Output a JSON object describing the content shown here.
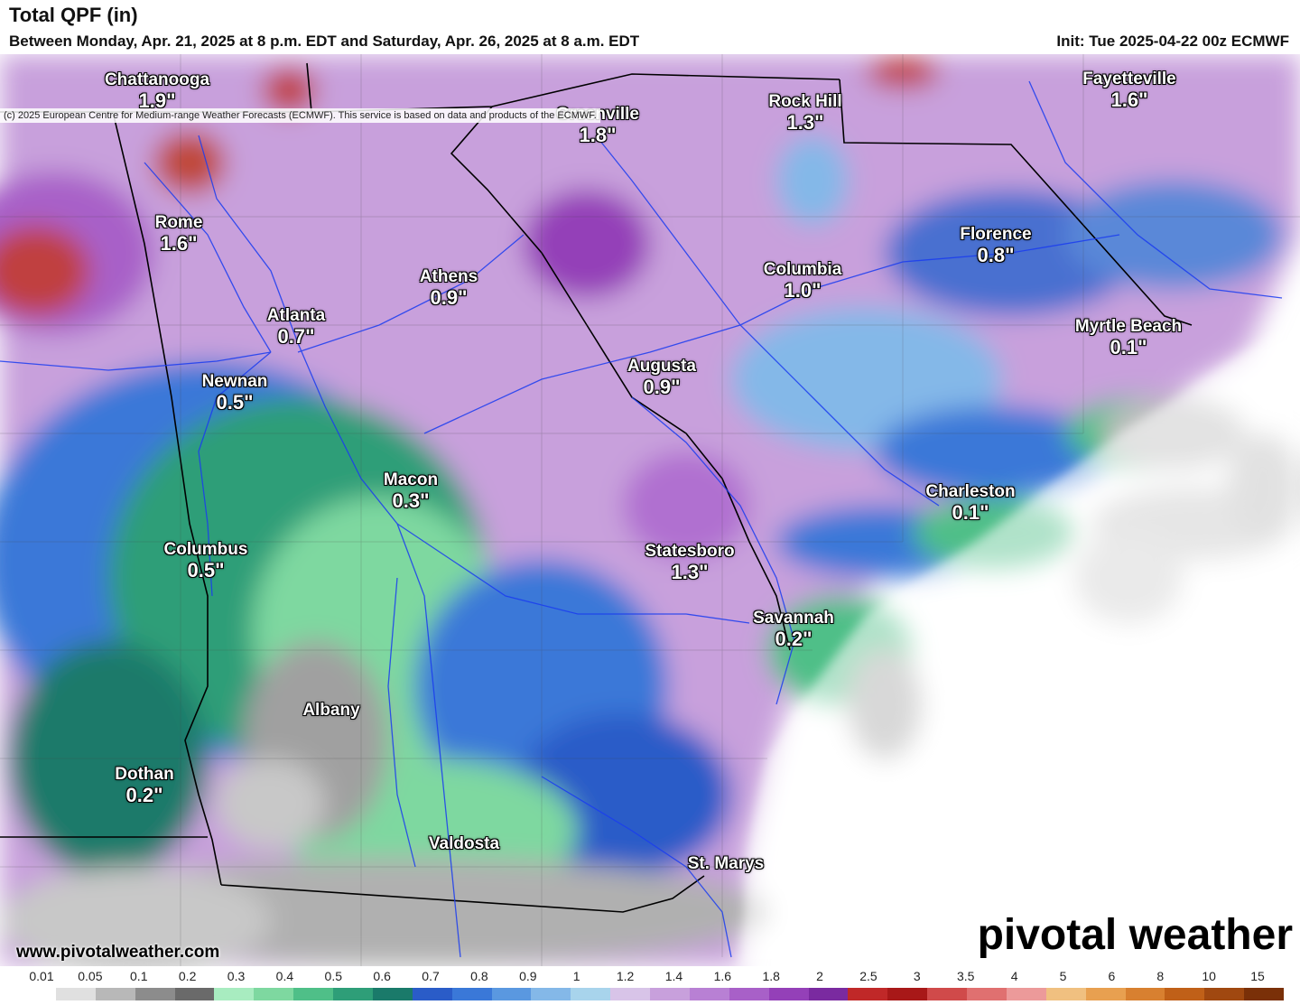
{
  "header": {
    "title": "Total QPF (in)",
    "subtitle": "Between Monday, Apr. 21, 2025 at 8 p.m. EDT and Saturday, Apr. 26, 2025 at 8 a.m. EDT",
    "init": "Init: Tue 2025-04-22 00z ECMWF",
    "copyright": "(c) 2025 European Centre for Medium-range Weather Forecasts (ECMWF). This service is based on data and products of the ECMWF."
  },
  "cities": [
    {
      "name": "Chattanooga",
      "value": "1.9\""
    },
    {
      "name": "Greenville",
      "value": "1.8\""
    },
    {
      "name": "Rock Hill",
      "value": "1.3\""
    },
    {
      "name": "Fayetteville",
      "value": "1.6\""
    },
    {
      "name": "Rome",
      "value": "1.6\""
    },
    {
      "name": "Florence",
      "value": "0.8\""
    },
    {
      "name": "Athens",
      "value": "0.9\""
    },
    {
      "name": "Columbia",
      "value": "1.0\""
    },
    {
      "name": "Atlanta",
      "value": "0.7\""
    },
    {
      "name": "Myrtle Beach",
      "value": "0.1\""
    },
    {
      "name": "Newnan",
      "value": "0.5\""
    },
    {
      "name": "Augusta",
      "value": "0.9\""
    },
    {
      "name": "Macon",
      "value": "0.3\""
    },
    {
      "name": "Charleston",
      "value": "0.1\""
    },
    {
      "name": "Columbus",
      "value": "0.5\""
    },
    {
      "name": "Statesboro",
      "value": "1.3\""
    },
    {
      "name": "Savannah",
      "value": "0.2\""
    },
    {
      "name": "Albany",
      "value": ""
    },
    {
      "name": "Dothan",
      "value": "0.2\""
    },
    {
      "name": "Valdosta",
      "value": ""
    },
    {
      "name": "St. Marys",
      "value": ""
    }
  ],
  "branding": {
    "watermark": "pivotal weather",
    "site": "www.pivotalweather.com"
  },
  "legend": {
    "ticks": [
      "0.01",
      "0.05",
      "0.1",
      "0.2",
      "0.3",
      "0.4",
      "0.5",
      "0.6",
      "0.7",
      "0.8",
      "0.9",
      "1",
      "1.2",
      "1.4",
      "1.6",
      "1.8",
      "2",
      "2.5",
      "3",
      "3.5",
      "4",
      "5",
      "6",
      "8",
      "10",
      "15"
    ],
    "colors": [
      "#ffffff",
      "#e0e0e0",
      "#b8b8b8",
      "#8c8c8c",
      "#6a6a6a",
      "#a8ecc0",
      "#7ed8a0",
      "#4fbf88",
      "#2e9e78",
      "#1a7a6a",
      "#2a5cc8",
      "#3a78d8",
      "#5a98e0",
      "#84b8e8",
      "#a8d4ec",
      "#d8c4e8",
      "#c8a0dc",
      "#b880d4",
      "#a860c8",
      "#9440b8",
      "#7a2aa0",
      "#c02828",
      "#a81818",
      "#d04a4a",
      "#e07070",
      "#ec9a9a",
      "#f0c080",
      "#e8a050",
      "#d88030",
      "#c06018",
      "#a04810",
      "#7a3008"
    ]
  }
}
